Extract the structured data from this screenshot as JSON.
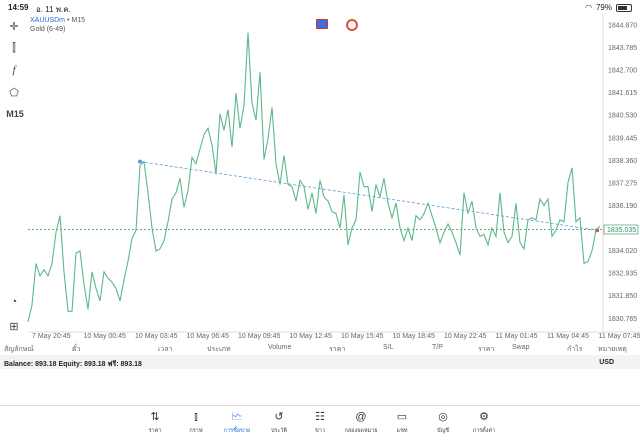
{
  "status": {
    "time": "14:59",
    "date": "อ. 11 พ.ค.",
    "battery": "79%"
  },
  "symbol": {
    "name": "XAUUSDm",
    "timeframe": "M15",
    "description": "Gold (6-49)"
  },
  "toolbar": {
    "timeframe": "M15"
  },
  "chart": {
    "price_levels": [
      "1844.870",
      "1843.785",
      "1842.700",
      "1841.615",
      "1840.530",
      "1839.445",
      "1838.360",
      "1837.275",
      "1836.190",
      "1835.105",
      "1834.020",
      "1832.935",
      "1831.850",
      "1830.765"
    ],
    "current_price": "1835.035",
    "time_labels": [
      "7 May 20:45",
      "10 May 00:45",
      "10 May 03:45",
      "10 May 06:45",
      "10 May 09:45",
      "10 May 12:45",
      "10 May 15:45",
      "10 May 18:45",
      "10 May 22:45",
      "11 May 01:45",
      "11 May 04:45",
      "11 May 07:45"
    ],
    "colors": {
      "line": "#5cb88a",
      "trend": "#5a9ad8",
      "price_line": "#2a8f5f"
    }
  },
  "chart_data": {
    "type": "line",
    "ylim": [
      1830.2,
      1845.4
    ],
    "x_index": [
      0,
      1,
      2,
      3,
      4,
      5,
      6,
      7,
      8,
      9,
      10,
      11,
      12,
      13,
      14,
      15,
      16,
      17,
      18,
      19,
      20,
      21,
      22,
      23,
      24,
      25,
      26,
      27,
      28,
      29,
      30,
      31,
      32,
      33,
      34,
      35,
      36,
      37,
      38,
      39,
      40,
      41,
      42,
      43,
      44,
      45,
      46,
      47,
      48,
      49,
      50,
      51,
      52,
      53,
      54,
      55,
      56,
      57,
      58,
      59,
      60,
      61,
      62,
      63,
      64,
      65,
      66,
      67,
      68,
      69,
      70,
      71,
      72,
      73,
      74,
      75,
      76,
      77,
      78,
      79,
      80,
      81,
      82,
      83,
      84,
      85,
      86,
      87,
      88,
      89,
      90,
      91,
      92,
      93,
      94,
      95,
      96,
      97,
      98,
      99,
      100,
      101,
      102,
      103,
      104,
      105,
      106,
      107,
      108,
      109,
      110,
      111,
      112,
      113,
      114,
      115,
      116,
      117,
      118,
      119,
      120,
      121,
      122,
      123,
      124,
      125,
      126,
      127,
      128,
      129,
      130,
      131,
      132,
      133,
      134,
      135,
      136,
      137,
      138,
      139,
      140,
      141,
      142,
      143
    ],
    "values": [
      1830.6,
      1831.4,
      1833.4,
      1832.8,
      1833.1,
      1832.8,
      1833.4,
      1834.9,
      1835.7,
      1833.0,
      1831.1,
      1831.1,
      1833.9,
      1834.0,
      1832.4,
      1831.2,
      1833.0,
      1832.2,
      1831.6,
      1833.0,
      1832.7,
      1832.5,
      1832.2,
      1831.6,
      1832.6,
      1833.5,
      1834.6,
      1835.0,
      1838.1,
      1838.3,
      1836.8,
      1835.1,
      1834.0,
      1834.1,
      1834.5,
      1835.4,
      1836.5,
      1836.8,
      1837.5,
      1836.1,
      1836.9,
      1838.5,
      1838.2,
      1838.9,
      1839.6,
      1839.9,
      1839.1,
      1837.7,
      1840.6,
      1839.8,
      1840.8,
      1839.0,
      1841.6,
      1839.9,
      1841.0,
      1844.5,
      1841.1,
      1840.3,
      1842.6,
      1838.4,
      1839.4,
      1840.9,
      1838.2,
      1837.2,
      1838.6,
      1837.2,
      1837.1,
      1836.4,
      1837.4,
      1837.1,
      1836.0,
      1836.8,
      1835.8,
      1837.4,
      1836.6,
      1836.4,
      1835.9,
      1835.8,
      1835.1,
      1836.7,
      1834.3,
      1835.1,
      1835.5,
      1837.8,
      1837.1,
      1837.1,
      1835.9,
      1837.2,
      1836.6,
      1837.5,
      1836.3,
      1835.6,
      1836.3,
      1835.1,
      1834.5,
      1835.1,
      1834.5,
      1835.7,
      1835.5,
      1835.8,
      1836.3,
      1835.7,
      1835.1,
      1834.4,
      1834.9,
      1835.3,
      1834.9,
      1834.4,
      1833.8,
      1836.8,
      1835.8,
      1836.4,
      1835.1,
      1834.7,
      1834.8,
      1834.3,
      1835.1,
      1834.7,
      1836.8,
      1834.9,
      1834.4,
      1834.7,
      1836.3,
      1834.4,
      1834.1,
      1835.5,
      1835.6,
      1835.5,
      1836.5,
      1836.2,
      1836.5,
      1834.7,
      1835.0,
      1835.5,
      1835.4,
      1837.3,
      1838.0,
      1835.4,
      1835.6,
      1833.4,
      1833.5,
      1834.0,
      1835.0,
      1835.2
    ],
    "trendline": {
      "start": {
        "index": 28,
        "value": 1838.3
      },
      "end": {
        "index": 143,
        "value": 1835.0
      }
    },
    "current_price": 1835.035
  },
  "columns": [
    "สัญลักษณ์",
    "ตั๋ว",
    "เวลา",
    "ประเภท",
    "Volume",
    "ราคา",
    "S/L",
    "T/P",
    "ราคา",
    "Swap",
    "กำไร",
    "หมายเหตุ"
  ],
  "balance": {
    "text": "Balance: 893.18 Equity: 893.18 ฟรี: 893.18",
    "currency": "USD"
  },
  "tabs": [
    {
      "label": "ราคา",
      "icon": "arrows-icon"
    },
    {
      "label": "กราฟ",
      "icon": "candles-icon"
    },
    {
      "label": "การซื้อขาย",
      "icon": "trade-icon"
    },
    {
      "label": "ประวัติ",
      "icon": "history-icon"
    },
    {
      "label": "ข่าว",
      "icon": "news-icon"
    },
    {
      "label": "กล่องจดหมาย",
      "icon": "mail-icon"
    },
    {
      "label": "แชท",
      "icon": "chat-icon"
    },
    {
      "label": "บัญชี",
      "icon": "account-icon"
    },
    {
      "label": "การตั้งค่า",
      "icon": "gear-icon"
    }
  ]
}
